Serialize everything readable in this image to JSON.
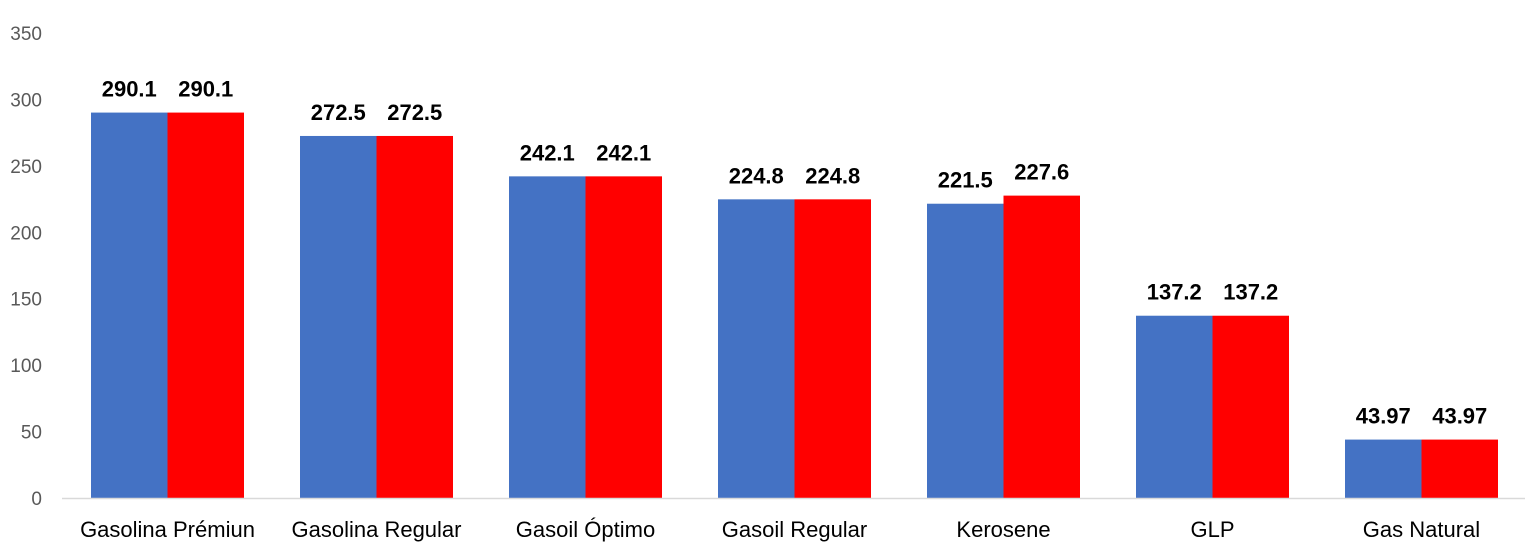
{
  "chart_data": {
    "type": "bar",
    "title": "",
    "xlabel": "",
    "ylabel": "",
    "ylim": [
      0,
      350
    ],
    "yticks": [
      0,
      50,
      100,
      150,
      200,
      250,
      300,
      350
    ],
    "grid": false,
    "legend": "none",
    "categories": [
      "Gasolina Prémiun",
      "Gasolina Regular",
      "Gasoil Óptimo",
      "Gasoil Regular",
      "Kerosene",
      "GLP",
      "Gas Natural"
    ],
    "series": [
      {
        "color": "#4472c4",
        "values": [
          290.1,
          272.5,
          242.1,
          224.8,
          221.5,
          137.2,
          43.97
        ],
        "labels": [
          "290.1",
          "272.5",
          "242.1",
          "224.8",
          "221.5",
          "137.2",
          "43.97"
        ]
      },
      {
        "color": "#ff0000",
        "values": [
          290.1,
          272.5,
          242.1,
          224.8,
          227.6,
          137.2,
          43.97
        ],
        "labels": [
          "290.1",
          "272.5",
          "242.1",
          "224.8",
          "227.6",
          "137.2",
          "43.97"
        ]
      }
    ]
  }
}
